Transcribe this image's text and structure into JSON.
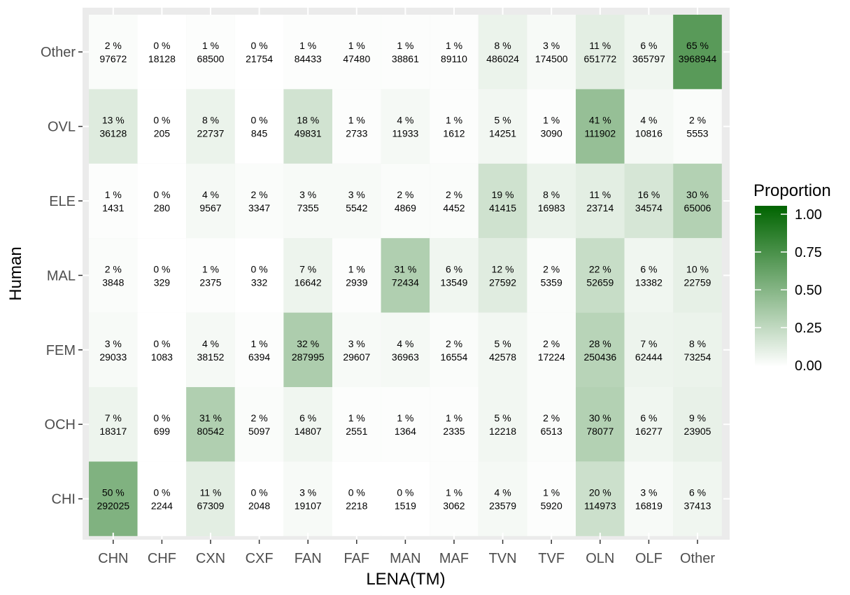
{
  "chart_data": {
    "type": "heatmap",
    "xlabel": "LENA(TM)",
    "ylabel": "Human",
    "x_categories": [
      "CHN",
      "CHF",
      "CXN",
      "CXF",
      "FAN",
      "FAF",
      "MAN",
      "MAF",
      "TVN",
      "TVF",
      "OLN",
      "OLF",
      "Other"
    ],
    "y_categories": [
      "Other",
      "OVL",
      "ELE",
      "MAL",
      "FEM",
      "OCH",
      "CHI"
    ],
    "percent_suffix": " %",
    "counts": [
      [
        97672,
        18128,
        68500,
        21754,
        84433,
        47480,
        38861,
        89110,
        486024,
        174500,
        651772,
        365797,
        3968944
      ],
      [
        36128,
        205,
        22737,
        845,
        49831,
        2733,
        11933,
        1612,
        14251,
        3090,
        111902,
        10816,
        5553
      ],
      [
        1431,
        280,
        9567,
        3347,
        7355,
        5542,
        4869,
        4452,
        41415,
        16983,
        23714,
        34574,
        65006
      ],
      [
        3848,
        329,
        2375,
        332,
        16642,
        2939,
        72434,
        13549,
        27592,
        5359,
        52659,
        13382,
        22759
      ],
      [
        29033,
        1083,
        38152,
        6394,
        287995,
        29607,
        36963,
        16554,
        42578,
        17224,
        250436,
        62444,
        73254
      ],
      [
        18317,
        699,
        80542,
        5097,
        14807,
        2551,
        1364,
        2335,
        12218,
        6513,
        78077,
        16277,
        23905
      ],
      [
        292025,
        2244,
        67309,
        2048,
        19107,
        2218,
        1519,
        3062,
        23579,
        5920,
        114973,
        16819,
        37413
      ]
    ],
    "percents": [
      [
        2,
        0,
        1,
        0,
        1,
        1,
        1,
        1,
        8,
        3,
        11,
        6,
        65
      ],
      [
        13,
        0,
        8,
        0,
        18,
        1,
        4,
        1,
        5,
        1,
        41,
        4,
        2
      ],
      [
        1,
        0,
        4,
        2,
        3,
        3,
        2,
        2,
        19,
        8,
        11,
        16,
        30
      ],
      [
        2,
        0,
        1,
        0,
        7,
        1,
        31,
        6,
        12,
        2,
        22,
        6,
        10
      ],
      [
        3,
        0,
        4,
        1,
        32,
        3,
        4,
        2,
        5,
        2,
        28,
        7,
        8
      ],
      [
        7,
        0,
        31,
        2,
        6,
        1,
        1,
        1,
        5,
        2,
        30,
        6,
        9
      ],
      [
        50,
        0,
        11,
        0,
        3,
        0,
        0,
        1,
        4,
        1,
        20,
        3,
        6
      ]
    ],
    "legend": {
      "title": "Proportion",
      "breaks": [
        1.0,
        0.75,
        0.5,
        0.25,
        0.0
      ],
      "labels": [
        "1.00",
        "0.75",
        "0.50",
        "0.25",
        "0.00"
      ],
      "range": [
        0,
        1
      ],
      "position": "right"
    },
    "colors": {
      "low": "#ffffff",
      "high": "#006400",
      "panel_background": "#ebebeb",
      "grid": "#ffffff",
      "tick_color": "#333333"
    }
  }
}
